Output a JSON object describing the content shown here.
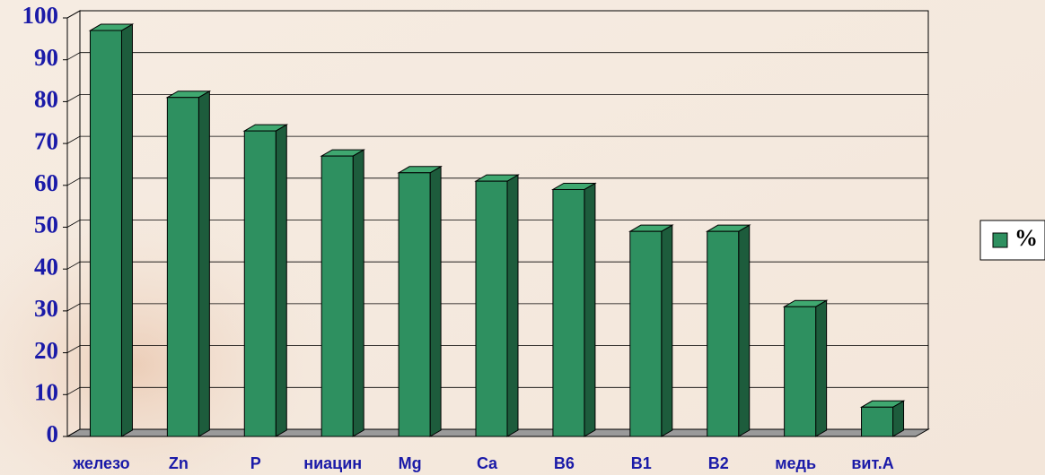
{
  "chart_data": {
    "type": "bar3d",
    "categories": [
      "железо",
      "Zn",
      "P",
      "ниацин",
      "Mg",
      "Ca",
      "B6",
      "B1",
      "B2",
      "медь",
      "вит.А"
    ],
    "series": [
      {
        "name": "%",
        "color": "#2e9060",
        "values": [
          97,
          81,
          73,
          67,
          63,
          61,
          59,
          49,
          49,
          31,
          7
        ]
      }
    ],
    "ylim": [
      0,
      100
    ],
    "yticks": [
      0,
      10,
      20,
      30,
      40,
      50,
      60,
      70,
      80,
      90,
      100
    ],
    "grid": true,
    "legend": "right"
  }
}
